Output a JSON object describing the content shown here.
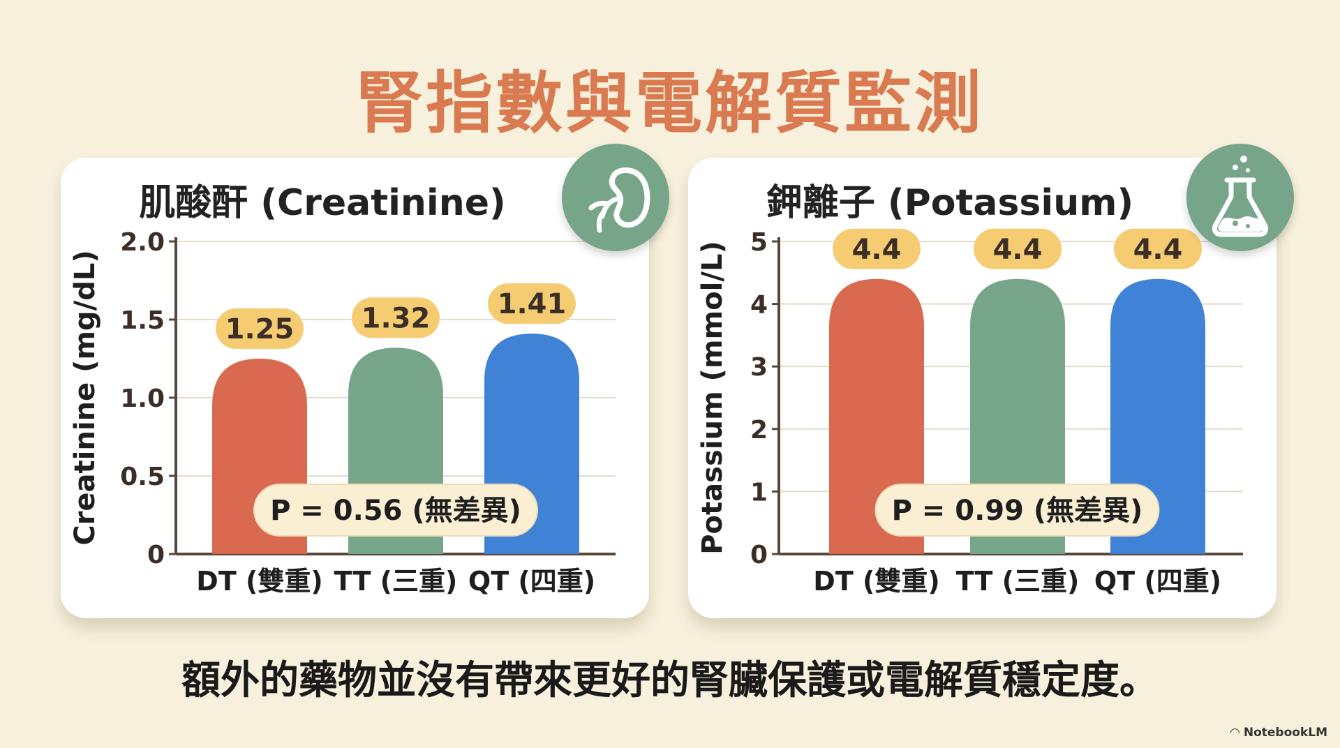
{
  "title": "腎指數與電解質監測",
  "footer_text": "額外的藥物並沒有帶來更好的腎臟保護或電解質穩定度。",
  "brand": "NotebookLM",
  "icons": {
    "left": "kidney-icon",
    "right": "flask-icon",
    "brand": "notebooklm-logo-icon"
  },
  "colors": {
    "title": "#d97a50",
    "bar_dt": "#d9694f",
    "bar_tt": "#76a58a",
    "bar_qt": "#3f82d6",
    "label_pill": "#f5cc72",
    "p_pill": "#fbefd3",
    "badge": "#76a58a"
  },
  "chart_data": [
    {
      "type": "bar",
      "title": "肌酸酐 (Creatinine)",
      "ylabel": "Creatinine (mg/dL)",
      "xlabel": "",
      "categories": [
        "DT (雙重)",
        "TT (三重)",
        "QT (四重)"
      ],
      "values": [
        1.25,
        1.32,
        1.41
      ],
      "value_labels": [
        "1.25",
        "1.32",
        "1.41"
      ],
      "ylim": [
        0,
        2.0
      ],
      "yticks": [
        0,
        0.5,
        1.0,
        1.5,
        2.0
      ],
      "ytick_labels": [
        "0",
        "0.5",
        "1.0",
        "1.5",
        "2.0"
      ],
      "annotation": "P = 0.56 (無差異)",
      "grid": true
    },
    {
      "type": "bar",
      "title": "鉀離子 (Potassium)",
      "ylabel": "Potassium (mmol/L)",
      "xlabel": "",
      "categories": [
        "DT (雙重)",
        "TT (三重)",
        "QT (四重)"
      ],
      "values": [
        4.4,
        4.4,
        4.4
      ],
      "value_labels": [
        "4.4",
        "4.4",
        "4.4"
      ],
      "ylim": [
        0,
        5
      ],
      "yticks": [
        0,
        1,
        2,
        3,
        4,
        5
      ],
      "ytick_labels": [
        "0",
        "1",
        "2",
        "3",
        "4",
        "5"
      ],
      "annotation": "P = 0.99 (無差異)",
      "grid": true
    }
  ]
}
